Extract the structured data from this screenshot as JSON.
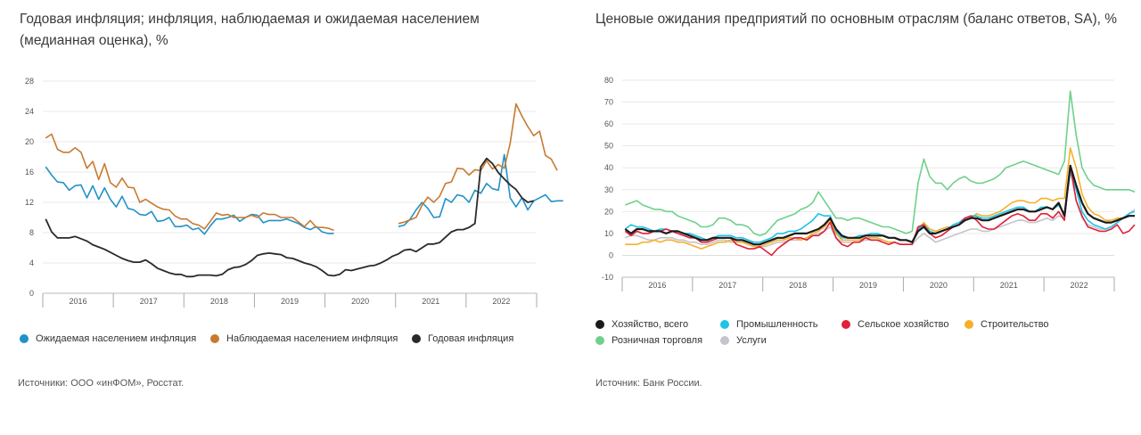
{
  "left": {
    "title": "Годовая инфляция; инфляция, наблюдаемая и ожидаемая населением (медианная оценка), %",
    "source": "Источники: ООО «инФОМ», Росстат.",
    "legend": [
      {
        "label": "Ожидаемая населением инфляция",
        "color": "#2192c8"
      },
      {
        "label": "Наблюдаемая населением инфляция",
        "color": "#c87a30"
      },
      {
        "label": "Годовая инфляция",
        "color": "#2a2a2a"
      }
    ]
  },
  "right": {
    "title": "Ценовые ожидания предприятий по основным отраслям (баланс ответов, SA), %",
    "source": "Источник: Банк России.",
    "legend": [
      {
        "label": "Хозяйство, всего",
        "color": "#1a1a1a"
      },
      {
        "label": "Промышленность",
        "color": "#1ec3e6"
      },
      {
        "label": "Сельское хозяйство",
        "color": "#e0203a"
      },
      {
        "label": "Строительство",
        "color": "#f5b02a"
      },
      {
        "label": "Розничная торговля",
        "color": "#6fd08c"
      },
      {
        "label": "Услуги",
        "color": "#c4c4cc"
      }
    ]
  },
  "chart_data": [
    {
      "type": "line",
      "title": "Годовая инфляция; инфляция, наблюдаемая и ожидаемая населением (медианная оценка), %",
      "x_start": "2016-01",
      "x_period": "month",
      "x_tick_labels": [
        "2016",
        "2017",
        "2018",
        "2019",
        "2020",
        "2021",
        "2022"
      ],
      "ylim": [
        0,
        28
      ],
      "y_ticks": [
        0,
        4,
        8,
        12,
        16,
        20,
        24,
        28
      ],
      "grid": true,
      "legend_position": "bottom",
      "series": [
        {
          "name": "Ожидаемая населением инфляция",
          "color": "#2192c8",
          "values": [
            16.7,
            15.6,
            14.7,
            14.6,
            13.6,
            14.2,
            14.3,
            12.6,
            14.2,
            12.4,
            13.9,
            12.4,
            11.4,
            12.8,
            11.2,
            11.0,
            10.4,
            10.3,
            10.8,
            9.5,
            9.6,
            10.0,
            8.8,
            8.8,
            9.0,
            8.4,
            8.6,
            7.8,
            8.9,
            9.8,
            9.8,
            10.0,
            10.3,
            9.5,
            10.0,
            10.4,
            10.3,
            9.3,
            9.6,
            9.6,
            9.6,
            9.8,
            9.5,
            9.2,
            8.7,
            8.4,
            8.8,
            8.1,
            7.9,
            7.9,
            null,
            null,
            null,
            null,
            null,
            null,
            null,
            null,
            null,
            null,
            8.8,
            9.0,
            9.8,
            11.0,
            12.0,
            11.2,
            10.0,
            10.1,
            12.5,
            12.0,
            13.0,
            12.8,
            12.0,
            13.6,
            13.2,
            14.5,
            13.8,
            13.6,
            18.3,
            12.6,
            11.4,
            12.6,
            11.0,
            12.2,
            12.6,
            13.0,
            12.1,
            12.2,
            12.2
          ]
        },
        {
          "name": "Наблюдаемая населением инфляция",
          "color": "#c87a30",
          "values": [
            20.5,
            21.0,
            19.0,
            18.6,
            18.6,
            19.2,
            18.6,
            16.5,
            17.4,
            15.0,
            17.1,
            14.6,
            14.0,
            15.2,
            14.0,
            13.9,
            12.0,
            12.4,
            11.9,
            11.4,
            11.1,
            11.0,
            10.2,
            9.8,
            9.8,
            9.2,
            9.0,
            8.5,
            9.5,
            10.6,
            10.3,
            10.4,
            10.0,
            10.0,
            10.0,
            10.3,
            10.0,
            10.6,
            10.4,
            10.4,
            10.0,
            10.0,
            10.0,
            9.4,
            8.8,
            9.6,
            8.7,
            8.7,
            8.6,
            8.3,
            null,
            null,
            null,
            null,
            null,
            null,
            null,
            null,
            null,
            null,
            9.2,
            9.4,
            9.7,
            10.0,
            11.6,
            12.7,
            12.0,
            12.8,
            14.5,
            14.7,
            16.5,
            16.4,
            15.6,
            16.3,
            16.2,
            17.5,
            16.4,
            17.0,
            16.5,
            19.8,
            25.0,
            23.4,
            22.0,
            20.8,
            21.4,
            18.2,
            17.7,
            16.2
          ]
        },
        {
          "name": "Годовая инфляция",
          "color": "#2a2a2a",
          "values": [
            9.8,
            8.1,
            7.3,
            7.3,
            7.3,
            7.5,
            7.2,
            6.9,
            6.4,
            6.1,
            5.8,
            5.4,
            5.0,
            4.6,
            4.3,
            4.1,
            4.1,
            4.4,
            3.9,
            3.3,
            3.0,
            2.7,
            2.5,
            2.5,
            2.2,
            2.2,
            2.4,
            2.4,
            2.4,
            2.3,
            2.5,
            3.1,
            3.4,
            3.5,
            3.8,
            4.3,
            5.0,
            5.2,
            5.3,
            5.2,
            5.1,
            4.7,
            4.6,
            4.3,
            4.0,
            3.8,
            3.5,
            3.0,
            2.4,
            2.3,
            2.5,
            3.1,
            3.0,
            3.2,
            3.4,
            3.6,
            3.7,
            4.0,
            4.4,
            4.9,
            5.2,
            5.7,
            5.8,
            5.5,
            6.0,
            6.5,
            6.5,
            6.7,
            7.4,
            8.1,
            8.4,
            8.4,
            8.7,
            9.2,
            16.7,
            17.8,
            17.1,
            15.9,
            15.1,
            14.3,
            13.7,
            12.6,
            12.0,
            12.2
          ]
        }
      ]
    },
    {
      "type": "line",
      "title": "Ценовые ожидания предприятий по основным отраслям (баланс ответов, SA), %",
      "x_start": "2016-01",
      "x_period": "month",
      "x_tick_labels": [
        "2016",
        "2017",
        "2018",
        "2019",
        "2020",
        "2021",
        "2022"
      ],
      "ylim": [
        -10,
        80
      ],
      "y_ticks": [
        -10,
        0,
        10,
        20,
        30,
        40,
        50,
        60,
        70,
        80
      ],
      "grid": true,
      "legend_position": "bottom",
      "series": [
        {
          "name": "Хозяйство, всего",
          "color": "#1a1a1a",
          "values": [
            12,
            10,
            12,
            12,
            11,
            11,
            11,
            10,
            11,
            11,
            10,
            9,
            8,
            7,
            7,
            8,
            8,
            8,
            8,
            7,
            7,
            6,
            5,
            5,
            6,
            7,
            8,
            8,
            9,
            10,
            10,
            10,
            11,
            12,
            14,
            17,
            12,
            9,
            8,
            8,
            8,
            9,
            9,
            9,
            9,
            8,
            8,
            7,
            7,
            6,
            11,
            13,
            10,
            10,
            11,
            12,
            13,
            14,
            16,
            17,
            17,
            16,
            16,
            17,
            18,
            19,
            20,
            21,
            21,
            20,
            20,
            21,
            22,
            21,
            24,
            18,
            41,
            32,
            24,
            19,
            17,
            16,
            15,
            15,
            16,
            17,
            18,
            18
          ]
        },
        {
          "name": "Промышленность",
          "color": "#1ec3e6",
          "values": [
            12,
            14,
            13,
            13,
            12,
            11,
            12,
            12,
            11,
            11,
            10,
            10,
            9,
            8,
            7,
            8,
            9,
            9,
            9,
            8,
            8,
            7,
            6,
            6,
            7,
            8,
            10,
            10,
            11,
            11,
            12,
            14,
            16,
            19,
            18,
            18,
            11,
            8,
            8,
            8,
            9,
            9,
            10,
            10,
            9,
            8,
            8,
            7,
            7,
            6,
            12,
            14,
            11,
            10,
            11,
            12,
            14,
            15,
            17,
            18,
            18,
            17,
            17,
            18,
            19,
            20,
            21,
            22,
            22,
            20,
            20,
            22,
            22,
            21,
            23,
            19,
            38,
            30,
            20,
            16,
            14,
            13,
            12,
            13,
            15,
            17,
            19,
            20
          ]
        },
        {
          "name": "Сельское хозяйство",
          "color": "#e0203a",
          "values": [
            11,
            9,
            11,
            10,
            10,
            11,
            11,
            12,
            11,
            10,
            9,
            8,
            8,
            6,
            6,
            7,
            8,
            8,
            8,
            5,
            4,
            3,
            3,
            4,
            2,
            0,
            3,
            5,
            7,
            8,
            8,
            7,
            9,
            9,
            11,
            15,
            8,
            5,
            4,
            6,
            6,
            8,
            7,
            7,
            6,
            5,
            6,
            5,
            5,
            5,
            13,
            14,
            10,
            8,
            9,
            11,
            13,
            14,
            17,
            18,
            16,
            13,
            12,
            12,
            14,
            16,
            18,
            19,
            18,
            16,
            16,
            19,
            19,
            17,
            20,
            16,
            41,
            25,
            18,
            13,
            12,
            11,
            11,
            12,
            14,
            10,
            11,
            14
          ]
        },
        {
          "name": "Строительство",
          "color": "#f5b02a",
          "values": [
            5,
            5,
            5,
            6,
            6,
            7,
            6,
            7,
            7,
            6,
            6,
            5,
            4,
            3,
            4,
            5,
            6,
            6,
            7,
            6,
            6,
            5,
            4,
            4,
            5,
            6,
            7,
            7,
            8,
            8,
            7,
            8,
            10,
            11,
            13,
            16,
            10,
            7,
            7,
            7,
            7,
            8,
            8,
            8,
            7,
            6,
            6,
            5,
            5,
            5,
            12,
            15,
            12,
            11,
            12,
            13,
            13,
            14,
            16,
            17,
            19,
            18,
            18,
            19,
            20,
            22,
            24,
            25,
            25,
            24,
            24,
            26,
            26,
            25,
            26,
            26,
            49,
            40,
            28,
            22,
            19,
            18,
            16,
            16,
            17,
            17,
            18,
            18
          ]
        },
        {
          "name": "Розничная торговля",
          "color": "#6fd08c",
          "values": [
            23,
            24,
            25,
            23,
            22,
            21,
            21,
            20,
            20,
            18,
            17,
            16,
            15,
            13,
            13,
            14,
            17,
            17,
            16,
            14,
            14,
            13,
            10,
            9,
            10,
            13,
            16,
            17,
            18,
            19,
            21,
            22,
            24,
            29,
            25,
            21,
            17,
            17,
            16,
            17,
            17,
            16,
            15,
            14,
            13,
            13,
            12,
            11,
            10,
            11,
            33,
            44,
            36,
            33,
            33,
            30,
            33,
            35,
            36,
            34,
            33,
            33,
            34,
            35,
            37,
            40,
            41,
            42,
            43,
            42,
            41,
            40,
            39,
            38,
            37,
            43,
            75,
            55,
            40,
            35,
            32,
            31,
            30,
            30,
            30,
            30,
            30,
            29
          ]
        },
        {
          "name": "Услуги",
          "color": "#c4c4cc",
          "values": [
            8,
            9,
            9,
            8,
            7,
            7,
            8,
            8,
            8,
            7,
            7,
            6,
            6,
            5,
            5,
            6,
            7,
            7,
            6,
            6,
            6,
            5,
            4,
            4,
            4,
            5,
            6,
            6,
            7,
            7,
            7,
            8,
            9,
            10,
            11,
            13,
            8,
            6,
            6,
            6,
            6,
            7,
            7,
            7,
            7,
            6,
            6,
            5,
            5,
            5,
            8,
            10,
            8,
            6,
            7,
            8,
            9,
            10,
            11,
            12,
            12,
            11,
            11,
            12,
            13,
            14,
            15,
            16,
            16,
            15,
            15,
            16,
            17,
            16,
            18,
            17,
            39,
            25,
            17,
            14,
            13,
            12,
            12,
            13,
            15,
            17,
            19,
            21
          ]
        }
      ]
    }
  ]
}
